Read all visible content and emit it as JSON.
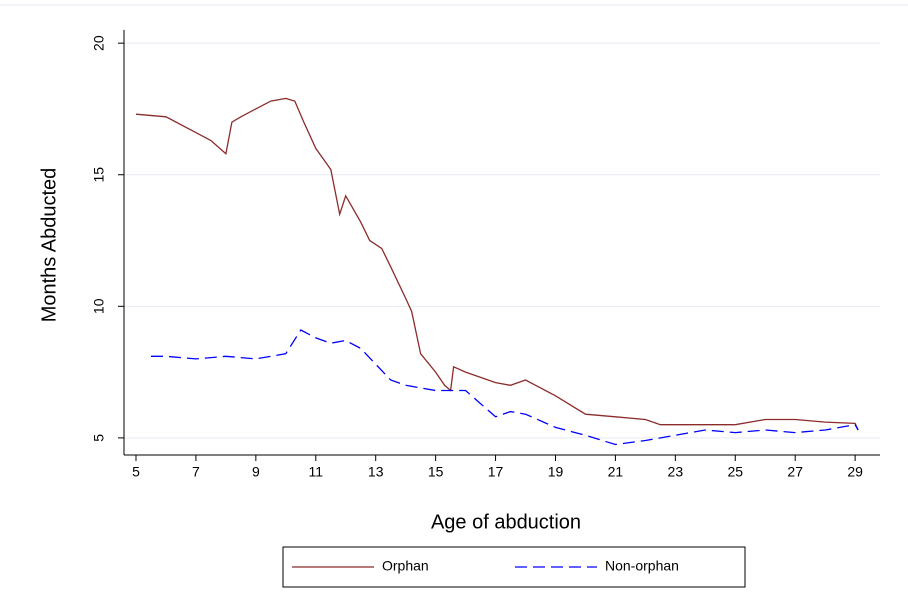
{
  "chart_data": {
    "type": "line",
    "x_label": "Age of abduction",
    "y_label": "Months Abducted",
    "xlim": [
      4.6,
      29.83
    ],
    "ylim": [
      4.35,
      20.5
    ],
    "xticks": [
      5,
      7,
      9,
      11,
      13,
      15,
      17,
      19,
      21,
      23,
      25,
      27,
      29
    ],
    "yticks": [
      5,
      10,
      15,
      20
    ],
    "grid": true,
    "legend": "bottom",
    "series": [
      {
        "name": "Orphan",
        "color": "#8c2b2b",
        "dash": "solid",
        "x": [
          5,
          6,
          7,
          7.5,
          8,
          8.2,
          8.5,
          9,
          9.5,
          10,
          10.3,
          10.6,
          11,
          11.5,
          11.8,
          12,
          12.5,
          12.8,
          13.2,
          13.5,
          14,
          14.2,
          14.5,
          15,
          15.3,
          15.5,
          15.6,
          16,
          17,
          17.5,
          18,
          19,
          20,
          21,
          22,
          22.5,
          24,
          25,
          26,
          27,
          28,
          29,
          29.1
        ],
        "values": [
          17.3,
          17.2,
          16.6,
          16.3,
          15.8,
          17,
          17.2,
          17.5,
          17.8,
          17.9,
          17.8,
          17,
          16,
          15.2,
          13.5,
          14.2,
          13.2,
          12.5,
          12.2,
          11.5,
          10.3,
          9.8,
          8.2,
          7.5,
          7.0,
          6.8,
          7.7,
          7.5,
          7.1,
          7.0,
          7.2,
          6.6,
          5.9,
          5.8,
          5.7,
          5.5,
          5.5,
          5.5,
          5.7,
          5.7,
          5.6,
          5.55,
          5.3
        ]
      },
      {
        "name": "Non-orphan",
        "color": "#0000ff",
        "dash": "dashed",
        "x": [
          5.5,
          6,
          7,
          8,
          9,
          10,
          10.5,
          11,
          11.5,
          12,
          12.5,
          13,
          13.5,
          14,
          15,
          16,
          16.5,
          17,
          17.5,
          18,
          19,
          20,
          21,
          22,
          23,
          24,
          25,
          26,
          27,
          28,
          29,
          29.1
        ],
        "values": [
          8.1,
          8.1,
          8.0,
          8.1,
          8.0,
          8.2,
          9.1,
          8.8,
          8.6,
          8.7,
          8.4,
          7.8,
          7.2,
          7.0,
          6.8,
          6.8,
          6.3,
          5.8,
          6.0,
          5.9,
          5.4,
          5.1,
          4.75,
          4.9,
          5.1,
          5.3,
          5.2,
          5.3,
          5.2,
          5.3,
          5.5,
          5.3
        ]
      }
    ]
  }
}
